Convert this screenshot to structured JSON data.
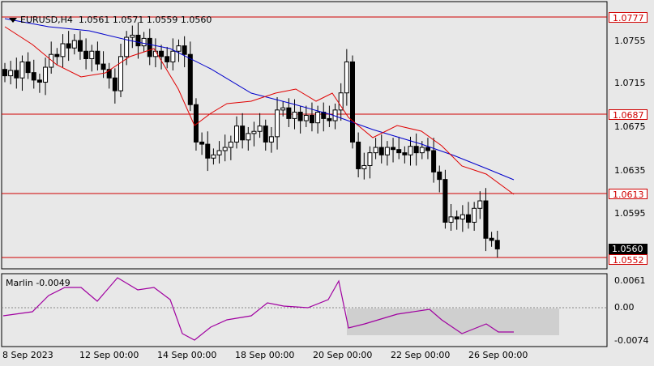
{
  "header": {
    "symbol": "EURUSD,H4",
    "ohlc": "1.0561 1.0571 1.0559 1.0560"
  },
  "indicator": {
    "label": "Marlin -0.0049",
    "axis_labels": [
      "0.0061",
      "0.00",
      "-0.0074"
    ]
  },
  "price_axis": {
    "labels": [
      "1.0755",
      "1.0715",
      "1.0675",
      "1.0635",
      "1.0595"
    ]
  },
  "price_tags": {
    "level1": "1.0777",
    "level2": "1.0687",
    "level3": "1.0613",
    "current": "1.0560",
    "level4": "1.0552"
  },
  "time_axis": {
    "labels": [
      "8 Sep 2023",
      "12 Sep 00:00",
      "14 Sep 00:00",
      "18 Sep 00:00",
      "20 Sep 00:00",
      "22 Sep 00:00",
      "26 Sep 00:00"
    ]
  },
  "colors": {
    "background": "#e8e8e8",
    "bull_candle": "#ffffff",
    "bear_candle": "#000000",
    "level_lines": "#d00000",
    "fast_ma": "#e00000",
    "slow_ma": "#0000cc",
    "oscillator": "#a000a0"
  }
}
